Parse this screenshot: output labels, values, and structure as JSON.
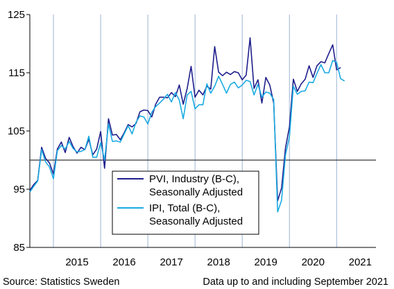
{
  "chart_data": {
    "type": "line",
    "title": "",
    "xlabel": "",
    "ylabel": "",
    "ylim": [
      85,
      125
    ],
    "xlim": [
      "2014-07",
      "2021-11"
    ],
    "yticks": [
      85,
      95,
      105,
      115,
      125
    ],
    "year_labels": [
      "2015",
      "2016",
      "2017",
      "2018",
      "2019",
      "2020",
      "2021"
    ],
    "gridlines": "vertical, yearly",
    "reference_line": 100,
    "legend_position": "bottom-center",
    "series": [
      {
        "name": "PVI, Industry (B-C), Seasonally Adjusted",
        "label_line1": "PVI, Industry (B-C),",
        "label_line2": "Seasonally Adjusted",
        "color": "#1e1e8c",
        "start": "2014-07",
        "values": [
          94.8,
          95.8,
          96.5,
          102.2,
          100.3,
          99.5,
          97.6,
          101.9,
          103.1,
          101.3,
          103.9,
          102.3,
          101.2,
          102.2,
          101.8,
          103.6,
          100.9,
          101.9,
          104.9,
          98.6,
          107.1,
          104.3,
          104.4,
          103.5,
          104.7,
          106.1,
          105.7,
          106.3,
          108.3,
          108.6,
          108.5,
          107.4,
          109.6,
          110.8,
          110.8,
          110.7,
          111.6,
          110.9,
          112.9,
          109.6,
          112.3,
          116.1,
          110.8,
          112.0,
          111.2,
          112.7,
          112.2,
          119.5,
          115.1,
          114.5,
          115.1,
          114.7,
          115.2,
          115.0,
          113.8,
          114.6,
          121.0,
          112.3,
          113.8,
          109.8,
          114.2,
          112.9,
          109.8,
          93.0,
          95.2,
          102.1,
          105.7,
          113.9,
          111.8,
          113.1,
          113.9,
          116.2,
          114.2,
          116.2,
          116.9,
          116.7,
          118.3,
          119.8,
          115.5,
          115.9
        ]
      },
      {
        "name": "IPI, Total (B-C), Seasonally Adjusted",
        "label_line1": "IPI, Total (B-C),",
        "label_line2": "Seasonally Adjusted",
        "color": "#1aaae2",
        "start": "2014-07",
        "values": [
          94.5,
          95.5,
          96.4,
          101.8,
          99.7,
          98.8,
          96.8,
          101.6,
          102.5,
          101.9,
          103.2,
          102.0,
          101.4,
          101.5,
          101.8,
          104.1,
          100.5,
          100.5,
          103.0,
          100.0,
          106.2,
          103.2,
          103.3,
          103.1,
          104.5,
          105.9,
          104.5,
          106.5,
          107.6,
          107.4,
          106.2,
          108.2,
          109.2,
          109.8,
          110.5,
          111.3,
          110.0,
          111.6,
          110.3,
          107.1,
          111.2,
          111.8,
          108.8,
          109.5,
          109.5,
          113.1,
          111.5,
          112.7,
          114.4,
          113.0,
          111.5,
          113.0,
          113.4,
          112.4,
          112.9,
          113.7,
          113.5,
          111.2,
          113.0,
          110.8,
          111.7,
          111.5,
          110.4,
          91.1,
          93.1,
          100.9,
          104.0,
          112.7,
          111.3,
          111.8,
          111.9,
          113.4,
          113.3,
          114.9,
          116.4,
          115.0,
          115.0,
          117.1,
          116.8,
          114.0,
          113.6
        ]
      }
    ]
  },
  "footer": {
    "source": "Source: Statistics Sweden",
    "note": "Data up to and including September 2021"
  }
}
